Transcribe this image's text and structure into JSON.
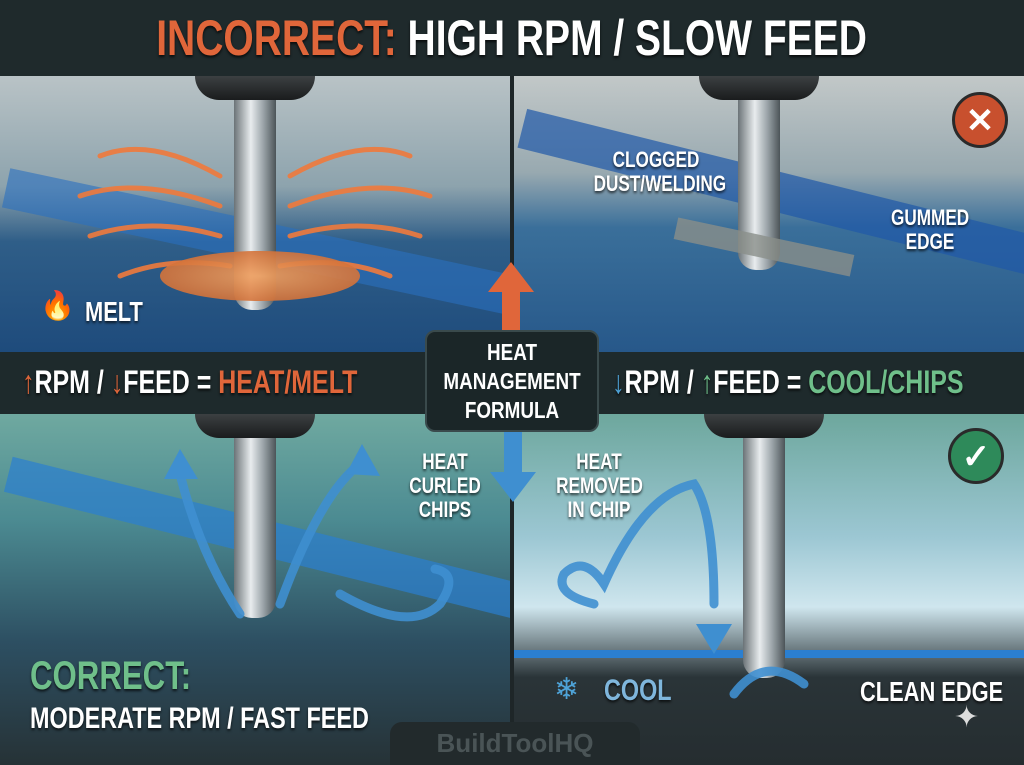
{
  "title": {
    "prefix": "INCORRECT:",
    "rest": " HIGH RPM / SLOW FEED"
  },
  "colors": {
    "orange": "#e0663a",
    "green": "#6fbf8a",
    "blue": "#4ea3d8",
    "dark": "#1e2a2c"
  },
  "top_left": {
    "melt_label": "MELT",
    "icon": "flame-icon"
  },
  "top_right": {
    "clogged_label": "CLOGGED DUST/WELDING",
    "gummed_label": "GUMMED EDGE",
    "icon": "x-circle-icon"
  },
  "band": {
    "left": {
      "rpm": "RPM /",
      "feed": "FEED =",
      "result": "HEAT/MELT"
    },
    "center": [
      "HEAT",
      "MANAGEMENT",
      "FORMULA"
    ],
    "right": {
      "rpm": "RPM /",
      "feed": "FEED =",
      "result": "COOL/CHIPS"
    }
  },
  "bottom_left": {
    "chips_label": "HEAT CURLED CHIPS",
    "correct_heading": "CORRECT:",
    "correct_text": "MODERATE RPM / FAST FEED"
  },
  "bottom_right": {
    "removed_label": "HEAT REMOVED IN CHIP",
    "cool_label": "COOL",
    "clean_label": "CLEAN EDGE",
    "icon": "check-circle-icon"
  },
  "watermark": "BuildToolHQ"
}
